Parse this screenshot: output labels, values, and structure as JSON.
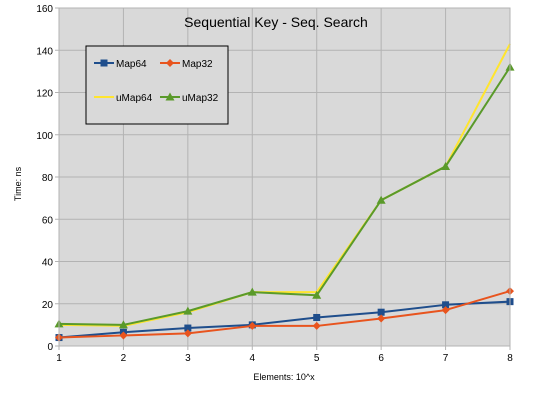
{
  "chart_data": {
    "type": "line",
    "title": "Sequential Key - Seq. Search",
    "xlabel": "Elements: 10^x",
    "ylabel": "Time: ns",
    "x": [
      1,
      2,
      3,
      4,
      5,
      6,
      7,
      8
    ],
    "xlim": [
      1,
      8
    ],
    "ylim": [
      0,
      160
    ],
    "yticks": [
      0,
      20,
      40,
      60,
      80,
      100,
      120,
      140,
      160
    ],
    "grid": true,
    "legend_position": "top-left",
    "series": [
      {
        "name": "Map64",
        "color": "#1f4e8c",
        "marker": "square",
        "values": [
          4,
          6.5,
          8.5,
          10,
          13.5,
          16,
          19.5,
          21
        ]
      },
      {
        "name": "Map32",
        "color": "#e8541e",
        "marker": "diamond",
        "values": [
          4,
          5,
          6,
          9.5,
          9.5,
          13,
          17,
          26
        ]
      },
      {
        "name": "uMap64",
        "color": "#ffe52e",
        "marker": "none",
        "values": [
          10,
          9.5,
          16,
          25.5,
          25.5,
          69,
          85,
          143
        ]
      },
      {
        "name": "uMap32",
        "color": "#5a9a2a",
        "marker": "triangle",
        "values": [
          10.5,
          10,
          16.5,
          25.5,
          24,
          69,
          85,
          132
        ]
      }
    ]
  }
}
